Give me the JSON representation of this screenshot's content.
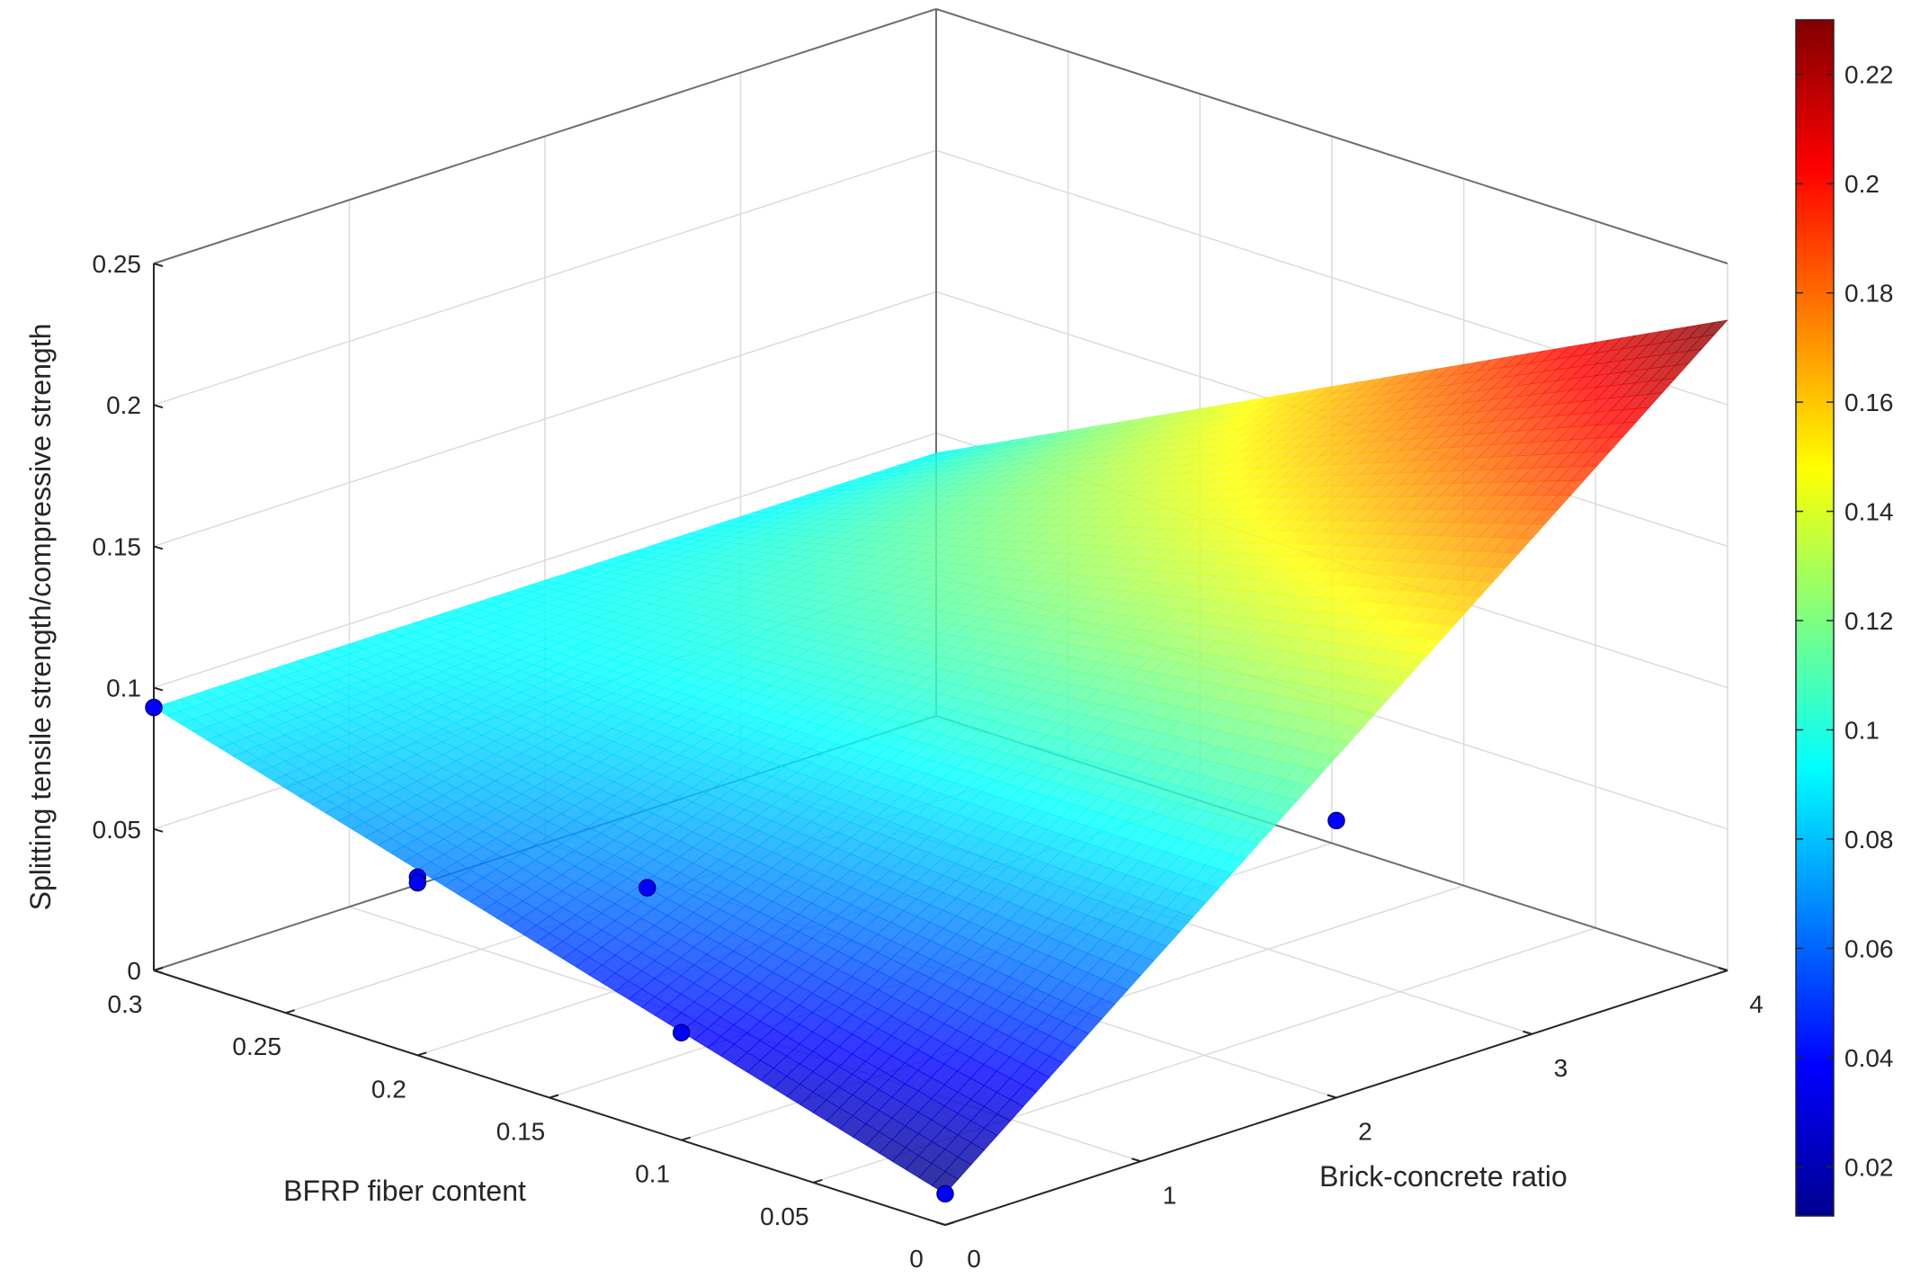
{
  "chart_data": {
    "type": "surface3d",
    "xlabel": "BFRP fiber content",
    "ylabel": "Brick-concrete ratio",
    "zlabel": "Splitting tensile strength/compressive strength",
    "xlim": [
      0,
      0.3
    ],
    "ylim": [
      0,
      4
    ],
    "zlim": [
      0,
      0.25
    ],
    "xticks": [
      "0",
      "0.05",
      "0.1",
      "0.15",
      "0.2",
      "0.25",
      "0.3"
    ],
    "yticks": [
      "0",
      "1",
      "2",
      "3",
      "4"
    ],
    "zticks": [
      "0",
      "0.05",
      "0.1",
      "0.15",
      "0.2",
      "0.25"
    ],
    "grid": true,
    "colormap": "jet",
    "colorbar": {
      "range": [
        0.011,
        0.23
      ],
      "ticks": [
        "0.02",
        "0.04",
        "0.06",
        "0.08",
        "0.1",
        "0.12",
        "0.14",
        "0.16",
        "0.18",
        "0.2",
        "0.22"
      ],
      "placement": "right"
    },
    "surface": {
      "corners": [
        {
          "x": 0,
          "y": 0,
          "z": 0.011
        },
        {
          "x": 0.3,
          "y": 0,
          "z": 0.093
        },
        {
          "x": 0,
          "y": 4,
          "z": 0.23
        },
        {
          "x": 0.3,
          "y": 4,
          "z": 0.093
        }
      ]
    },
    "points": [
      {
        "x": 0.3,
        "y": 0,
        "z": 0.093
      },
      {
        "x": 0.2,
        "y": 0,
        "z": 0.063
      },
      {
        "x": 0.2,
        "y": 0,
        "z": 0.061
      },
      {
        "x": 0.1,
        "y": 0,
        "z": 0.038
      },
      {
        "x": 0,
        "y": 0,
        "z": 0.011
      },
      {
        "x": 0.15,
        "y": 0.5,
        "z": 0.063
      },
      {
        "x": 0,
        "y": 2,
        "z": 0.098
      }
    ]
  }
}
